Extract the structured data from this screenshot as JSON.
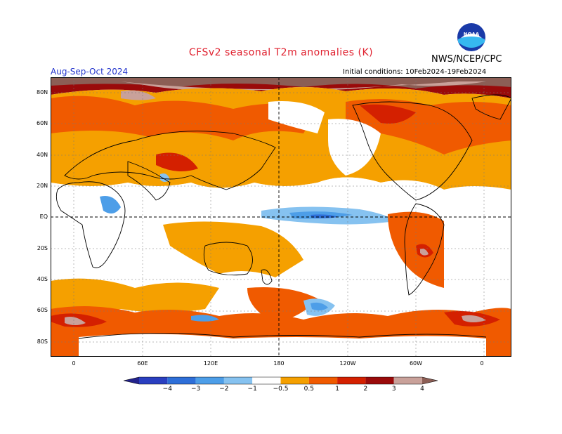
{
  "header": {
    "title": "CFSv2  seasonal  T2m  anomalies  (K)",
    "period": "Aug-Sep-Oct 2024",
    "agency": "NWS/NCEP/CPC",
    "initial_conditions": "Initial conditions: 10Feb2024-19Feb2024",
    "logo_text": "NOAA"
  },
  "map": {
    "lat_labels": [
      "80N",
      "60N",
      "40N",
      "20N",
      "EQ",
      "20S",
      "40S",
      "60S",
      "80S"
    ],
    "lon_labels": [
      "0",
      "60E",
      "120E",
      "180",
      "120W",
      "60W",
      "0"
    ],
    "reference_lines": [
      "EQ",
      "180"
    ]
  },
  "colorbar": {
    "ticks": [
      "−4",
      "−3",
      "−2",
      "−1",
      "−0.5",
      "0.5",
      "1",
      "2",
      "3",
      "4"
    ],
    "colors": [
      "#23238c",
      "#2a3fc0",
      "#2e6fd8",
      "#4d9ee8",
      "#86c2f0",
      "#ffffff",
      "#f5a000",
      "#f05a00",
      "#d42000",
      "#9a0a0a",
      "#c9a19a",
      "#8c5e55"
    ]
  },
  "palette": {
    "ocean_neutral": "#ffffff",
    "warm_0_5": "#f5a000",
    "warm_1": "#f05a00",
    "warm_2": "#d42000",
    "warm_3": "#9a0a0a",
    "warm_4": "#c9a19a",
    "extreme": "#8c5e55",
    "cool_0_5": "#86c2f0",
    "cool_1": "#4d9ee8",
    "cool_2": "#2e6fd8"
  }
}
